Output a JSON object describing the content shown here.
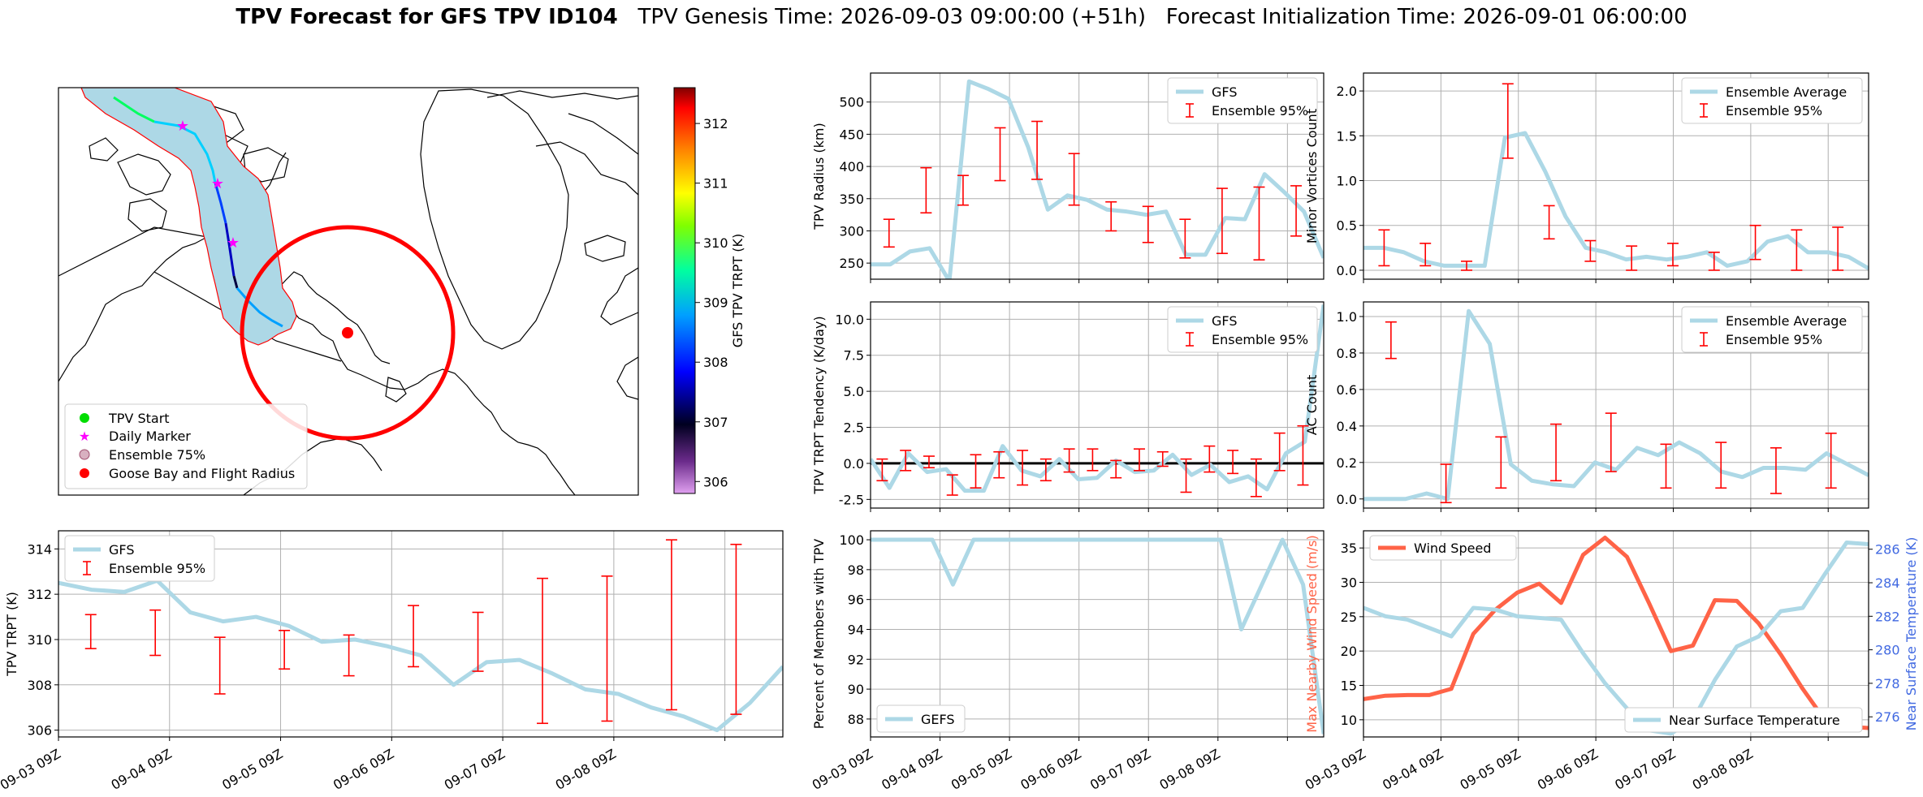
{
  "header": {
    "title_bold": "TPV Forecast for GFS TPV ID104",
    "title_rest": "   TPV Genesis Time: 2026-09-03 09:00:00 (+51h)   Forecast Initialization Time: 2026-09-01 06:00:00"
  },
  "colors": {
    "gfs": "#add8e6",
    "ensemble": "#ff0000",
    "wind": "#ff6347",
    "temp_axis": "#4169e1"
  },
  "map": {
    "legend": [
      "TPV Start",
      "Daily Marker",
      "Ensemble 75%",
      "Goose Bay and Flight Radius"
    ],
    "colorbar_label": "GFS TPV TRPT (K)",
    "colorbar_ticks": [
      306,
      307,
      308,
      309,
      310,
      311,
      312
    ],
    "colorbar_range": [
      305.8,
      312.6
    ]
  },
  "chart_data": [
    {
      "id": "radius",
      "type": "line",
      "ylabel": "TPV Radius (km)",
      "ylim": [
        225,
        545
      ],
      "yticks": [
        250,
        300,
        350,
        400,
        450,
        500
      ],
      "series": [
        {
          "name": "GFS",
          "values": [
            248,
            248,
            268,
            273,
            222,
            532,
            520,
            505,
            430,
            333,
            355,
            348,
            333,
            330,
            325,
            330,
            263,
            263,
            320,
            318,
            388,
            360,
            330,
            258
          ]
        },
        {
          "name": "Ensemble 95%",
          "intervals": [
            [
              275,
              318
            ],
            [
              328,
              398
            ],
            [
              340,
              386
            ],
            [
              378,
              460
            ],
            [
              380,
              470
            ],
            [
              340,
              420
            ],
            [
              300,
              345
            ],
            [
              282,
              338
            ],
            [
              258,
              318
            ],
            [
              265,
              366
            ],
            [
              255,
              368
            ],
            [
              292,
              370
            ]
          ]
        }
      ],
      "legend": [
        "GFS",
        "Ensemble 95%"
      ]
    },
    {
      "id": "minor",
      "type": "line",
      "ylabel": "Minor Vortices Count",
      "ylim": [
        -0.1,
        2.2
      ],
      "yticks": [
        0.0,
        0.5,
        1.0,
        1.5,
        2.0
      ],
      "series": [
        {
          "name": "Ensemble Average",
          "values": [
            0.25,
            0.25,
            0.2,
            0.1,
            0.05,
            0.05,
            0.05,
            1.48,
            1.53,
            1.1,
            0.6,
            0.25,
            0.2,
            0.12,
            0.15,
            0.12,
            0.15,
            0.2,
            0.05,
            0.1,
            0.32,
            0.38,
            0.2,
            0.2,
            0.15,
            0.02
          ]
        },
        {
          "name": "Ensemble 95%",
          "intervals": [
            [
              0.05,
              0.45
            ],
            [
              0.05,
              0.3
            ],
            [
              0.0,
              0.1
            ],
            [
              1.25,
              2.08
            ],
            [
              0.35,
              0.72
            ],
            [
              0.1,
              0.33
            ],
            [
              0.0,
              0.27
            ],
            [
              0.05,
              0.3
            ],
            [
              0.0,
              0.2
            ],
            [
              0.12,
              0.5
            ],
            [
              0.0,
              0.45
            ],
            [
              0.0,
              0.48
            ]
          ]
        }
      ],
      "legend": [
        "Ensemble Average",
        "Ensemble 95%"
      ]
    },
    {
      "id": "tendency",
      "type": "line",
      "ylabel": "TPV TRPT Tendency (K/day)",
      "ylim": [
        -3.1,
        11.2
      ],
      "yticks": [
        -2.5,
        0.0,
        2.5,
        5.0,
        7.5,
        10.0
      ],
      "series": [
        {
          "name": "GFS",
          "values": [
            0.3,
            -1.7,
            0.7,
            -0.6,
            -0.4,
            -1.9,
            -1.9,
            1.2,
            -0.5,
            -0.9,
            0.3,
            -1.1,
            -1.0,
            0.2,
            -0.6,
            -0.5,
            0.6,
            -0.8,
            -0.1,
            -1.3,
            -0.9,
            -1.8,
            0.7,
            1.5,
            11.0
          ]
        },
        {
          "name": "Ensemble 95%",
          "intervals": [
            [
              -1.2,
              0.3
            ],
            [
              -0.5,
              0.9
            ],
            [
              -0.3,
              0.5
            ],
            [
              -2.2,
              -0.8
            ],
            [
              -1.7,
              0.6
            ],
            [
              -1.0,
              0.8
            ],
            [
              -1.5,
              0.9
            ],
            [
              -1.2,
              0.3
            ],
            [
              -0.6,
              1.0
            ],
            [
              -0.5,
              1.0
            ],
            [
              -1.0,
              0.2
            ],
            [
              -0.5,
              1.0
            ],
            [
              -0.2,
              0.8
            ],
            [
              -2.0,
              0.3
            ],
            [
              -0.6,
              1.2
            ],
            [
              -0.7,
              0.9
            ],
            [
              -2.3,
              0.3
            ],
            [
              -0.5,
              2.1
            ],
            [
              -1.5,
              2.6
            ]
          ]
        }
      ],
      "legend": [
        "GFS",
        "Ensemble 95%"
      ]
    },
    {
      "id": "ac",
      "type": "line",
      "ylabel": "AC Count",
      "ylim": [
        -0.05,
        1.08
      ],
      "yticks": [
        0.0,
        0.2,
        0.4,
        0.6,
        0.8,
        1.0
      ],
      "series": [
        {
          "name": "Ensemble Average",
          "values": [
            0,
            0,
            0,
            0.03,
            0,
            1.03,
            0.85,
            0.19,
            0.1,
            0.08,
            0.07,
            0.2,
            0.16,
            0.28,
            0.24,
            0.31,
            0.25,
            0.15,
            0.12,
            0.17,
            0.17,
            0.16,
            0.25,
            0.19,
            0.13
          ]
        },
        {
          "name": "Ensemble 95%",
          "intervals": [
            [
              0.77,
              0.97
            ],
            [
              -0.02,
              0.19
            ],
            [
              0.06,
              0.34
            ],
            [
              0.1,
              0.41
            ],
            [
              0.15,
              0.47
            ],
            [
              0.06,
              0.3
            ],
            [
              0.06,
              0.31
            ],
            [
              0.03,
              0.28
            ],
            [
              0.06,
              0.36
            ]
          ]
        }
      ],
      "legend": [
        "Ensemble Average",
        "Ensemble 95%"
      ]
    },
    {
      "id": "trpt",
      "type": "line",
      "ylabel": "TPV TRPT (K)",
      "ylim": [
        305.7,
        314.8
      ],
      "yticks": [
        306,
        308,
        310,
        312,
        314
      ],
      "xticks": [
        "09-03 09Z",
        "09-04 09Z",
        "09-05 09Z",
        "09-06 09Z",
        "09-07 09Z",
        "09-08 09Z"
      ],
      "series": [
        {
          "name": "GFS",
          "values": [
            312.5,
            312.2,
            312.1,
            312.6,
            311.2,
            310.8,
            311.0,
            310.6,
            309.9,
            310.0,
            309.7,
            309.3,
            308.0,
            309.0,
            309.1,
            308.5,
            307.8,
            307.6,
            307.0,
            306.6,
            306.0,
            307.2,
            308.8
          ]
        },
        {
          "name": "Ensemble 95%",
          "intervals": [
            [
              309.6,
              311.1
            ],
            [
              309.3,
              311.3
            ],
            [
              307.6,
              310.1
            ],
            [
              308.7,
              310.4
            ],
            [
              308.4,
              310.2
            ],
            [
              308.8,
              311.5
            ],
            [
              308.6,
              311.2
            ],
            [
              306.3,
              312.7
            ],
            [
              306.4,
              312.8
            ],
            [
              306.9,
              314.4
            ],
            [
              306.7,
              314.2
            ]
          ]
        }
      ],
      "legend": [
        "GFS",
        "Ensemble 95%"
      ]
    },
    {
      "id": "percent",
      "type": "line",
      "ylabel": "Percent of Members with TPV",
      "ylim": [
        86.8,
        100.6
      ],
      "yticks": [
        88,
        90,
        92,
        94,
        96,
        98,
        100
      ],
      "xticks": [
        "09-03 09Z",
        "09-04 09Z",
        "09-05 09Z",
        "09-06 09Z",
        "09-07 09Z",
        "09-08 09Z"
      ],
      "series": [
        {
          "name": "GEFS",
          "values": [
            100,
            100,
            100,
            100,
            97,
            100,
            100,
            100,
            100,
            100,
            100,
            100,
            100,
            100,
            100,
            100,
            100,
            100,
            94,
            97,
            100,
            97,
            87
          ]
        }
      ],
      "legend": [
        "GEFS"
      ]
    },
    {
      "id": "wind",
      "type": "line",
      "ylabel": "Max Nearby Wind Speed (m/s)",
      "ylabel_right": "Near Surface Temperature (K)",
      "ylim": [
        7.5,
        37.5
      ],
      "yticks": [
        10,
        15,
        20,
        25,
        30,
        35
      ],
      "ylim_right": [
        274.8,
        287.1
      ],
      "yticks_right": [
        276,
        278,
        280,
        282,
        284,
        286
      ],
      "xticks": [
        "09-03 09Z",
        "09-04 09Z",
        "09-05 09Z",
        "09-06 09Z",
        "09-07 09Z",
        "09-08 09Z"
      ],
      "series": [
        {
          "name": "Wind Speed",
          "values": [
            13,
            13.5,
            13.6,
            13.6,
            14.5,
            22.5,
            26,
            28.5,
            29.8,
            27,
            34,
            36.5,
            33.7,
            27,
            20,
            20.8,
            27.4,
            27.3,
            24,
            19.5,
            14.5,
            10,
            9,
            8.8
          ]
        },
        {
          "name": "Near Surface Temperature",
          "values": [
            282.5,
            282,
            281.8,
            281.3,
            280.8,
            282.5,
            282.4,
            282,
            281.9,
            281.8,
            279.8,
            278,
            276.5,
            275.2,
            275,
            275.8,
            278.2,
            280.2,
            280.8,
            282.3,
            282.5,
            284.5,
            286.4,
            286.3
          ]
        }
      ],
      "legend": [
        "Wind Speed",
        "Near Surface Temperature"
      ]
    }
  ]
}
